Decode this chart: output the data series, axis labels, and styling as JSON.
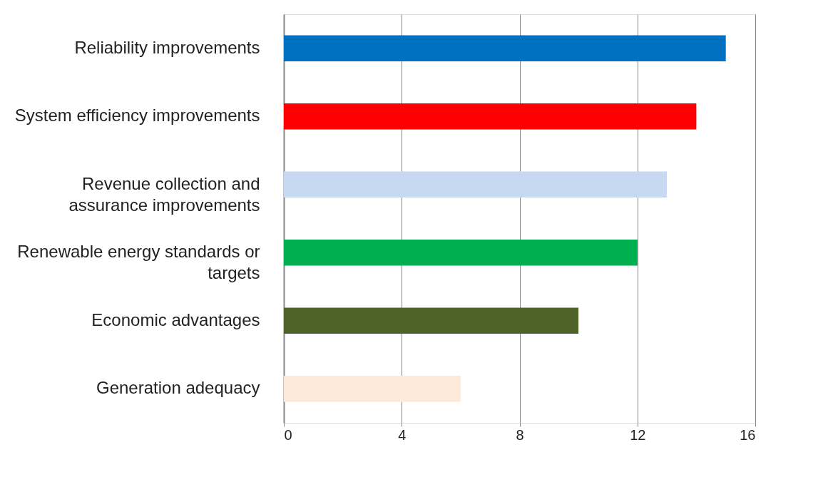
{
  "chart_data": {
    "type": "bar",
    "orientation": "horizontal",
    "categories": [
      "Reliability improvements",
      "System efficiency improvements",
      "Revenue collection and\nassurance improvements",
      "Renewable energy standards or\ntargets",
      "Economic advantages",
      "Generation adequacy"
    ],
    "values": [
      15,
      14,
      13,
      12,
      10,
      6
    ],
    "colors": [
      "#0070c0",
      "#ff0000",
      "#c6d9f1",
      "#00b050",
      "#4f6228",
      "#fde9d9"
    ],
    "xlim": [
      0,
      16
    ],
    "xticks": [
      0,
      4,
      8,
      12,
      16
    ],
    "grid": "x",
    "legend": false
  }
}
